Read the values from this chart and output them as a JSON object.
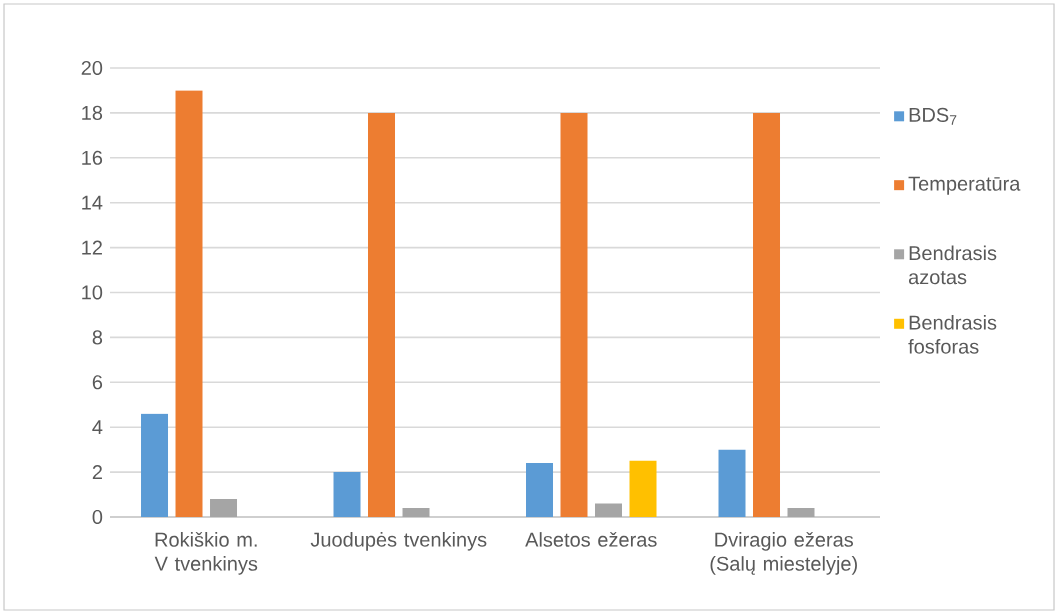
{
  "chart_data": {
    "type": "bar",
    "categories": [
      "Rokiškio m. V tvenkinys",
      "Juodupės tvenkinys",
      "Alsetos ežeras",
      "Dviragio ežeras (Salų miestelyje)"
    ],
    "series": [
      {
        "name": "BDS$_{7}$",
        "color": "#5b9bd5",
        "values": [
          4.6,
          2.0,
          2.4,
          3.0
        ]
      },
      {
        "name": "Temperatūra",
        "color": "#ed7d31",
        "values": [
          19,
          18,
          18,
          18
        ]
      },
      {
        "name": "Bendrasis azotas",
        "color": "#a5a5a5",
        "values": [
          0.8,
          0.4,
          0.6,
          0.4
        ]
      },
      {
        "name": "Bendrasis fosforas",
        "color": "#ffc000",
        "values": [
          null,
          null,
          2.5,
          null
        ]
      }
    ],
    "ylim": [
      0,
      20
    ],
    "yticks": [
      0,
      2,
      4,
      6,
      8,
      10,
      12,
      14,
      16,
      18,
      20
    ],
    "grid": "y",
    "legend": "right"
  }
}
